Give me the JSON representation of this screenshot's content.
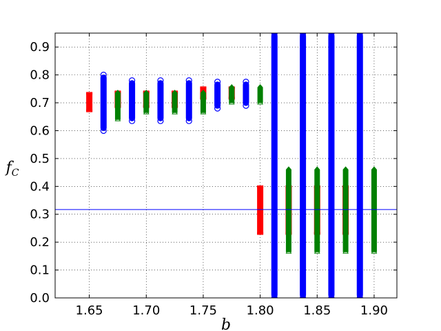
{
  "chart_data": {
    "type": "scatter",
    "title": "",
    "xlabel": "b",
    "ylabel": "f",
    "ylabel_subscript": "C",
    "xlim": [
      1.62,
      1.92
    ],
    "ylim": [
      0.0,
      0.95
    ],
    "xticks": [
      "1.65",
      "1.70",
      "1.75",
      "1.80",
      "1.85",
      "1.90"
    ],
    "yticks": [
      "0.0",
      "0.1",
      "0.2",
      "0.3",
      "0.4",
      "0.5",
      "0.6",
      "0.7",
      "0.8",
      "0.9"
    ],
    "grid": true,
    "reference_line": {
      "y": 0.317,
      "color": "#0000ff"
    },
    "series": [
      {
        "marker": "square",
        "color": "#ff0000",
        "x": [
          1.65,
          1.675,
          1.7,
          1.725,
          1.75,
          1.775,
          1.8,
          1.825,
          1.85,
          1.875
        ],
        "y_range": [
          [
            0.67,
            0.735
          ],
          [
            0.685,
            0.74
          ],
          [
            0.685,
            0.74
          ],
          [
            0.685,
            0.74
          ],
          [
            0.715,
            0.755
          ],
          [
            0.715,
            0.755
          ],
          [
            0.23,
            0.4
          ],
          [
            0.23,
            0.4
          ],
          [
            0.23,
            0.4
          ],
          [
            0.23,
            0.4
          ]
        ]
      },
      {
        "marker": "circle",
        "color": "#0000ff",
        "x": [
          1.6625,
          1.6875,
          1.7125,
          1.7375,
          1.7625,
          1.7875,
          1.8125,
          1.8375,
          1.8625,
          1.8875
        ],
        "y_range": [
          [
            0.6,
            0.8
          ],
          [
            0.635,
            0.78
          ],
          [
            0.635,
            0.78
          ],
          [
            0.635,
            0.78
          ],
          [
            0.68,
            0.775
          ],
          [
            0.69,
            0.775
          ],
          [
            0.0,
            0.95
          ],
          [
            0.0,
            0.95
          ],
          [
            0.0,
            0.95
          ],
          [
            0.0,
            0.95
          ]
        ]
      },
      {
        "marker": "triangle",
        "color": "#008000",
        "x": [
          1.675,
          1.7,
          1.725,
          1.75,
          1.775,
          1.8,
          1.825,
          1.85,
          1.875,
          1.9
        ],
        "y_range": [
          [
            0.64,
            0.745
          ],
          [
            0.665,
            0.745
          ],
          [
            0.665,
            0.745
          ],
          [
            0.665,
            0.745
          ],
          [
            0.7,
            0.765
          ],
          [
            0.7,
            0.765
          ],
          [
            0.165,
            0.47
          ],
          [
            0.165,
            0.47
          ],
          [
            0.165,
            0.47
          ],
          [
            0.165,
            0.47
          ]
        ]
      }
    ]
  }
}
